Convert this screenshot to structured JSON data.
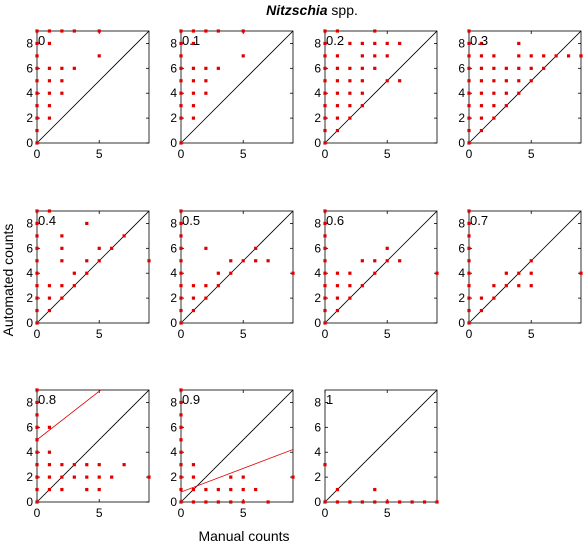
{
  "chart_data": {
    "type": "scatter",
    "title": {
      "species": "Nitzschia",
      "suffix": " spp."
    },
    "xlabel": "Manual counts",
    "ylabel": "Automated counts",
    "xlim": [
      0,
      9
    ],
    "ylim": [
      0,
      9
    ],
    "xticks": [
      "0",
      "5"
    ],
    "yticks": [
      "0",
      "2",
      "4",
      "6",
      "8"
    ],
    "grid": false,
    "colors": {
      "points": "#e00000",
      "fit": "#e00000",
      "identity": "#000000",
      "axes": "#000000"
    },
    "panels": [
      {
        "label": "0",
        "points": [
          [
            0,
            0
          ],
          [
            0,
            1
          ],
          [
            0,
            2
          ],
          [
            0,
            3
          ],
          [
            0,
            4
          ],
          [
            0,
            5
          ],
          [
            0,
            6
          ],
          [
            0,
            7
          ],
          [
            0,
            8
          ],
          [
            0,
            9
          ],
          [
            1,
            2
          ],
          [
            1,
            3
          ],
          [
            1,
            4
          ],
          [
            1,
            5
          ],
          [
            1,
            6
          ],
          [
            1,
            8
          ],
          [
            1,
            9
          ],
          [
            2,
            4
          ],
          [
            2,
            5
          ],
          [
            2,
            6
          ],
          [
            2,
            9
          ],
          [
            3,
            6
          ],
          [
            3,
            9
          ],
          [
            5,
            7
          ],
          [
            5,
            9
          ]
        ],
        "fit": null
      },
      {
        "label": "0.1",
        "points": [
          [
            0,
            0
          ],
          [
            0,
            2
          ],
          [
            0,
            3
          ],
          [
            0,
            4
          ],
          [
            0,
            5
          ],
          [
            0,
            6
          ],
          [
            0,
            7
          ],
          [
            0,
            8
          ],
          [
            0,
            9
          ],
          [
            1,
            2
          ],
          [
            1,
            3
          ],
          [
            1,
            4
          ],
          [
            1,
            5
          ],
          [
            1,
            6
          ],
          [
            1,
            8
          ],
          [
            1,
            9
          ],
          [
            2,
            4
          ],
          [
            2,
            5
          ],
          [
            2,
            6
          ],
          [
            2,
            9
          ],
          [
            3,
            6
          ],
          [
            3,
            9
          ],
          [
            5,
            7
          ],
          [
            5,
            9
          ]
        ],
        "fit": null
      },
      {
        "label": "0.2",
        "points": [
          [
            0,
            0
          ],
          [
            0,
            1
          ],
          [
            0,
            2
          ],
          [
            0,
            3
          ],
          [
            0,
            4
          ],
          [
            0,
            5
          ],
          [
            0,
            6
          ],
          [
            0,
            7
          ],
          [
            0,
            8
          ],
          [
            0,
            9
          ],
          [
            1,
            1
          ],
          [
            1,
            2
          ],
          [
            1,
            3
          ],
          [
            1,
            4
          ],
          [
            1,
            5
          ],
          [
            1,
            6
          ],
          [
            1,
            7
          ],
          [
            1,
            9
          ],
          [
            2,
            2
          ],
          [
            2,
            3
          ],
          [
            2,
            4
          ],
          [
            2,
            5
          ],
          [
            2,
            6
          ],
          [
            2,
            8
          ],
          [
            3,
            3
          ],
          [
            3,
            4
          ],
          [
            3,
            5
          ],
          [
            3,
            6
          ],
          [
            3,
            7
          ],
          [
            3,
            8
          ],
          [
            4,
            6
          ],
          [
            4,
            7
          ],
          [
            4,
            8
          ],
          [
            4,
            9
          ],
          [
            5,
            5
          ],
          [
            5,
            7
          ],
          [
            5,
            8
          ],
          [
            6,
            5
          ],
          [
            6,
            8
          ]
        ],
        "fit": null
      },
      {
        "label": "0.3",
        "points": [
          [
            0,
            0
          ],
          [
            0,
            1
          ],
          [
            0,
            2
          ],
          [
            0,
            3
          ],
          [
            0,
            4
          ],
          [
            0,
            5
          ],
          [
            0,
            6
          ],
          [
            0,
            7
          ],
          [
            0,
            8
          ],
          [
            0,
            9
          ],
          [
            1,
            1
          ],
          [
            1,
            2
          ],
          [
            1,
            3
          ],
          [
            1,
            4
          ],
          [
            1,
            5
          ],
          [
            1,
            6
          ],
          [
            1,
            7
          ],
          [
            1,
            8
          ],
          [
            2,
            2
          ],
          [
            2,
            3
          ],
          [
            2,
            4
          ],
          [
            2,
            5
          ],
          [
            2,
            6
          ],
          [
            2,
            7
          ],
          [
            3,
            3
          ],
          [
            3,
            4
          ],
          [
            3,
            5
          ],
          [
            3,
            6
          ],
          [
            4,
            4
          ],
          [
            4,
            5
          ],
          [
            4,
            6
          ],
          [
            4,
            7
          ],
          [
            4,
            8
          ],
          [
            5,
            5
          ],
          [
            5,
            6
          ],
          [
            5,
            7
          ],
          [
            6,
            6
          ],
          [
            6,
            7
          ],
          [
            7,
            7
          ],
          [
            8,
            7
          ],
          [
            9,
            7
          ]
        ],
        "fit": null
      },
      {
        "label": "0.4",
        "points": [
          [
            0,
            0
          ],
          [
            0,
            1
          ],
          [
            0,
            2
          ],
          [
            0,
            3
          ],
          [
            0,
            4
          ],
          [
            0,
            5
          ],
          [
            0,
            6
          ],
          [
            0,
            7
          ],
          [
            0,
            8
          ],
          [
            0,
            9
          ],
          [
            1,
            1
          ],
          [
            1,
            2
          ],
          [
            1,
            3
          ],
          [
            1,
            9
          ],
          [
            2,
            2
          ],
          [
            2,
            3
          ],
          [
            2,
            5
          ],
          [
            2,
            6
          ],
          [
            2,
            7
          ],
          [
            3,
            3
          ],
          [
            3,
            4
          ],
          [
            4,
            4
          ],
          [
            4,
            5
          ],
          [
            4,
            8
          ],
          [
            5,
            5
          ],
          [
            5,
            6
          ],
          [
            6,
            6
          ],
          [
            7,
            7
          ],
          [
            9,
            5
          ]
        ],
        "fit": null
      },
      {
        "label": "0.5",
        "points": [
          [
            0,
            0
          ],
          [
            0,
            1
          ],
          [
            0,
            2
          ],
          [
            0,
            3
          ],
          [
            0,
            4
          ],
          [
            0,
            5
          ],
          [
            0,
            6
          ],
          [
            0,
            7
          ],
          [
            0,
            8
          ],
          [
            0,
            9
          ],
          [
            1,
            1
          ],
          [
            1,
            2
          ],
          [
            1,
            3
          ],
          [
            2,
            2
          ],
          [
            2,
            3
          ],
          [
            2,
            6
          ],
          [
            3,
            3
          ],
          [
            3,
            4
          ],
          [
            4,
            4
          ],
          [
            4,
            5
          ],
          [
            5,
            5
          ],
          [
            6,
            5
          ],
          [
            6,
            6
          ],
          [
            7,
            5
          ],
          [
            9,
            4
          ]
        ],
        "fit": null
      },
      {
        "label": "0.6",
        "points": [
          [
            0,
            0
          ],
          [
            0,
            1
          ],
          [
            0,
            2
          ],
          [
            0,
            3
          ],
          [
            0,
            4
          ],
          [
            0,
            5
          ],
          [
            0,
            6
          ],
          [
            0,
            7
          ],
          [
            0,
            8
          ],
          [
            0,
            9
          ],
          [
            1,
            1
          ],
          [
            1,
            2
          ],
          [
            1,
            3
          ],
          [
            1,
            4
          ],
          [
            2,
            2
          ],
          [
            2,
            3
          ],
          [
            2,
            4
          ],
          [
            3,
            3
          ],
          [
            3,
            5
          ],
          [
            4,
            4
          ],
          [
            4,
            5
          ],
          [
            5,
            5
          ],
          [
            5,
            6
          ],
          [
            6,
            5
          ],
          [
            9,
            4
          ]
        ],
        "fit": null
      },
      {
        "label": "0.7",
        "points": [
          [
            0,
            0
          ],
          [
            0,
            1
          ],
          [
            0,
            2
          ],
          [
            0,
            3
          ],
          [
            0,
            4
          ],
          [
            0,
            5
          ],
          [
            0,
            6
          ],
          [
            0,
            7
          ],
          [
            0,
            8
          ],
          [
            0,
            9
          ],
          [
            1,
            1
          ],
          [
            1,
            2
          ],
          [
            2,
            2
          ],
          [
            2,
            3
          ],
          [
            3,
            3
          ],
          [
            3,
            4
          ],
          [
            4,
            3
          ],
          [
            4,
            4
          ],
          [
            5,
            3
          ],
          [
            5,
            4
          ],
          [
            5,
            5
          ],
          [
            9,
            4
          ]
        ],
        "fit": null
      },
      {
        "label": "0.8",
        "points": [
          [
            0,
            0
          ],
          [
            0,
            1
          ],
          [
            0,
            2
          ],
          [
            0,
            3
          ],
          [
            0,
            4
          ],
          [
            0,
            5
          ],
          [
            0,
            6
          ],
          [
            0,
            7
          ],
          [
            0,
            8
          ],
          [
            0,
            9
          ],
          [
            1,
            1
          ],
          [
            1,
            2
          ],
          [
            1,
            3
          ],
          [
            1,
            4
          ],
          [
            1,
            6
          ],
          [
            2,
            1
          ],
          [
            2,
            2
          ],
          [
            2,
            3
          ],
          [
            3,
            2
          ],
          [
            3,
            3
          ],
          [
            4,
            1
          ],
          [
            4,
            2
          ],
          [
            4,
            3
          ],
          [
            5,
            1
          ],
          [
            5,
            2
          ],
          [
            5,
            3
          ],
          [
            6,
            2
          ],
          [
            7,
            3
          ],
          [
            9,
            2
          ]
        ],
        "fit": {
          "intercept": 5,
          "slope": 0.78
        }
      },
      {
        "label": "0.9",
        "points": [
          [
            0,
            0
          ],
          [
            0,
            1
          ],
          [
            0,
            2
          ],
          [
            0,
            3
          ],
          [
            0,
            4
          ],
          [
            0,
            5
          ],
          [
            0,
            6
          ],
          [
            0,
            7
          ],
          [
            0,
            8
          ],
          [
            0,
            9
          ],
          [
            1,
            0
          ],
          [
            1,
            1
          ],
          [
            1,
            2
          ],
          [
            1,
            3
          ],
          [
            2,
            0
          ],
          [
            2,
            1
          ],
          [
            3,
            0
          ],
          [
            3,
            1
          ],
          [
            4,
            0
          ],
          [
            4,
            1
          ],
          [
            4,
            2
          ],
          [
            5,
            0
          ],
          [
            5,
            1
          ],
          [
            5,
            2
          ],
          [
            6,
            1
          ],
          [
            7,
            0
          ],
          [
            9,
            2
          ]
        ],
        "fit": {
          "intercept": 0.8,
          "slope": 0.38
        }
      },
      {
        "label": "1",
        "points": [
          [
            0,
            0
          ],
          [
            0,
            3
          ],
          [
            1,
            0
          ],
          [
            1,
            1
          ],
          [
            2,
            0
          ],
          [
            3,
            0
          ],
          [
            4,
            0
          ],
          [
            4,
            1
          ],
          [
            5,
            0
          ],
          [
            6,
            0
          ],
          [
            7,
            0
          ],
          [
            8,
            0
          ],
          [
            9,
            0
          ]
        ],
        "fit": {
          "intercept": 0,
          "slope": 0
        }
      }
    ]
  }
}
